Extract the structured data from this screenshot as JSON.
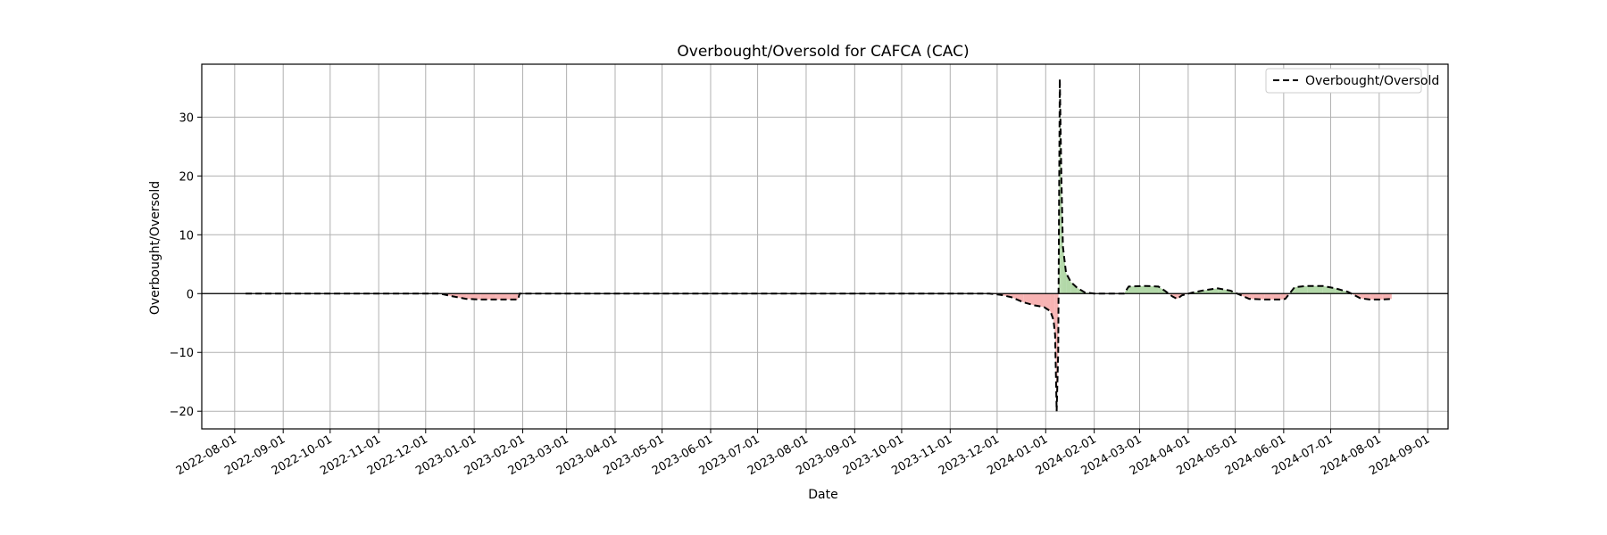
{
  "chart_data": {
    "type": "line",
    "title": "Overbought/Oversold for CAFCA (CAC)",
    "xlabel": "Date",
    "ylabel": "Overbought/Oversold",
    "xlim": [
      "2022-07-11",
      "2024-09-14"
    ],
    "ylim": [
      -23.0,
      39.0
    ],
    "x_ticks": [
      "2022-08-01",
      "2022-09-01",
      "2022-10-01",
      "2022-11-01",
      "2022-12-01",
      "2023-01-01",
      "2023-02-01",
      "2023-03-01",
      "2023-04-01",
      "2023-05-01",
      "2023-06-01",
      "2023-07-01",
      "2023-08-01",
      "2023-09-01",
      "2023-10-01",
      "2023-11-01",
      "2023-12-01",
      "2024-01-01",
      "2024-02-01",
      "2024-03-01",
      "2024-04-01",
      "2024-05-01",
      "2024-06-01",
      "2024-07-01",
      "2024-08-01",
      "2024-09-01"
    ],
    "y_ticks": [
      30,
      20,
      10,
      0,
      -10,
      -20
    ],
    "grid": true,
    "legend": {
      "position": "top-right",
      "entries": [
        "Overbought/Oversold"
      ]
    },
    "zero_line": 0,
    "fill": {
      "positive_color": "#b2d8a8",
      "negative_color": "#f7b3b3"
    },
    "series": [
      {
        "name": "Overbought/Oversold",
        "style": "dashed",
        "color": "#000000",
        "points": [
          [
            "2022-08-08",
            0
          ],
          [
            "2022-09-01",
            0
          ],
          [
            "2022-10-01",
            0
          ],
          [
            "2022-11-01",
            0
          ],
          [
            "2022-12-01",
            0
          ],
          [
            "2022-12-10",
            0
          ],
          [
            "2022-12-17",
            -0.4
          ],
          [
            "2022-12-27",
            -0.9
          ],
          [
            "2023-01-05",
            -1.0
          ],
          [
            "2023-01-15",
            -1.0
          ],
          [
            "2023-01-25",
            -1.0
          ],
          [
            "2023-01-29",
            -1.0
          ],
          [
            "2023-01-30",
            0
          ],
          [
            "2023-03-01",
            0
          ],
          [
            "2023-05-01",
            0
          ],
          [
            "2023-07-01",
            0
          ],
          [
            "2023-09-01",
            0
          ],
          [
            "2023-11-01",
            0
          ],
          [
            "2023-11-26",
            0
          ],
          [
            "2023-12-03",
            -0.2
          ],
          [
            "2023-12-10",
            -0.6
          ],
          [
            "2023-12-18",
            -1.5
          ],
          [
            "2023-12-25",
            -2.0
          ],
          [
            "2023-12-31",
            -2.3
          ],
          [
            "2024-01-04",
            -3.0
          ],
          [
            "2024-01-06",
            -4.5
          ],
          [
            "2024-01-07",
            -7.0
          ],
          [
            "2024-01-08",
            -20.0
          ],
          [
            "2024-01-09",
            -10.0
          ],
          [
            "2024-01-10",
            36.5
          ],
          [
            "2024-01-11",
            20.0
          ],
          [
            "2024-01-12",
            8.0
          ],
          [
            "2024-01-14",
            3.5
          ],
          [
            "2024-01-17",
            2.0
          ],
          [
            "2024-01-21",
            1.0
          ],
          [
            "2024-01-26",
            0.2
          ],
          [
            "2024-02-01",
            0
          ],
          [
            "2024-02-20",
            0
          ],
          [
            "2024-02-23",
            1.2
          ],
          [
            "2024-03-05",
            1.3
          ],
          [
            "2024-03-13",
            1.2
          ],
          [
            "2024-03-17",
            0.5
          ],
          [
            "2024-03-22",
            -0.5
          ],
          [
            "2024-03-25",
            -0.9
          ],
          [
            "2024-03-28",
            -0.3
          ],
          [
            "2024-04-04",
            0.2
          ],
          [
            "2024-04-12",
            0.6
          ],
          [
            "2024-04-20",
            0.9
          ],
          [
            "2024-04-28",
            0.5
          ],
          [
            "2024-05-04",
            -0.2
          ],
          [
            "2024-05-10",
            -0.9
          ],
          [
            "2024-05-20",
            -1.0
          ],
          [
            "2024-05-30",
            -1.0
          ],
          [
            "2024-06-02",
            -0.9
          ],
          [
            "2024-06-08",
            1.1
          ],
          [
            "2024-06-16",
            1.3
          ],
          [
            "2024-06-26",
            1.3
          ],
          [
            "2024-07-04",
            0.9
          ],
          [
            "2024-07-12",
            0.3
          ],
          [
            "2024-07-20",
            -0.8
          ],
          [
            "2024-07-26",
            -1.0
          ],
          [
            "2024-08-03",
            -1.0
          ],
          [
            "2024-08-09",
            -0.9
          ]
        ]
      }
    ]
  }
}
